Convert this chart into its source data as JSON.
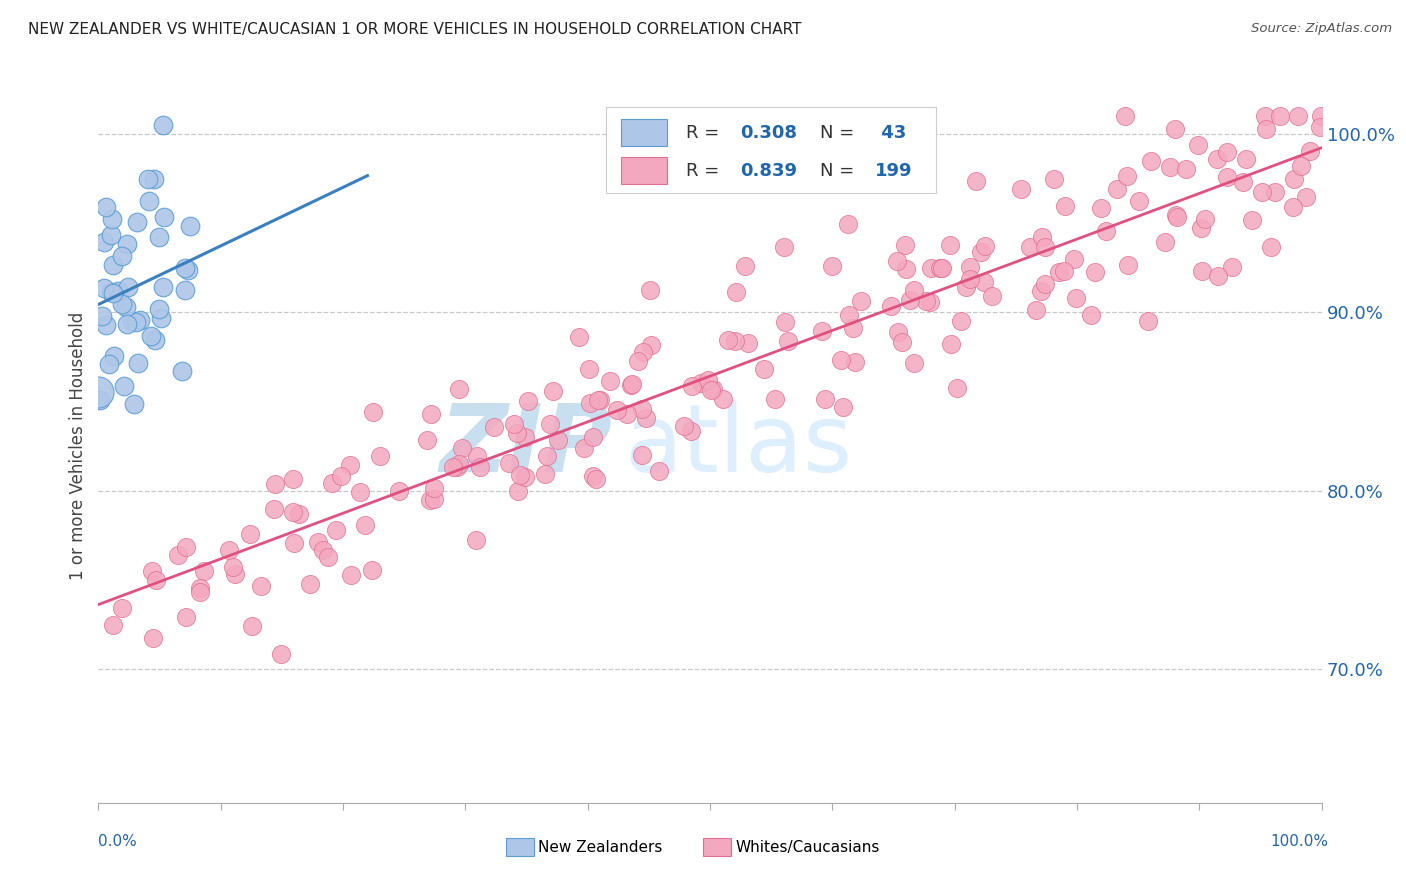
{
  "title": "NEW ZEALANDER VS WHITE/CAUCASIAN 1 OR MORE VEHICLES IN HOUSEHOLD CORRELATION CHART",
  "source": "Source: ZipAtlas.com",
  "ylabel": "1 or more Vehicles in Household",
  "watermark_zip": "ZIP",
  "watermark_atlas": "atlas",
  "xlim": [
    0.0,
    1.0
  ],
  "ylim": [
    0.625,
    1.025
  ],
  "yticks": [
    0.7,
    0.8,
    0.9,
    1.0
  ],
  "ytick_labels": [
    "70.0%",
    "80.0%",
    "90.0%",
    "100.0%"
  ],
  "blue_R": "0.308",
  "blue_N": "43",
  "pink_R": "0.839",
  "pink_N": "199",
  "blue_fill": "#aec6e8",
  "blue_edge": "#5a9fd4",
  "blue_line": "#3a7fbf",
  "pink_fill": "#f4a8c0",
  "pink_edge": "#e07090",
  "pink_line": "#e05080",
  "legend_color": "#2166ac",
  "title_color": "#222222",
  "source_color": "#555555",
  "axis_tick_color": "#2166ac",
  "grid_color": "#bbbbbb",
  "bg_color": "#ffffff",
  "watermark_zip_color": "#c8dff0",
  "watermark_atlas_color": "#ddeeff",
  "bottom_label_color": "#000000",
  "xlabel_color": "#2166ac"
}
